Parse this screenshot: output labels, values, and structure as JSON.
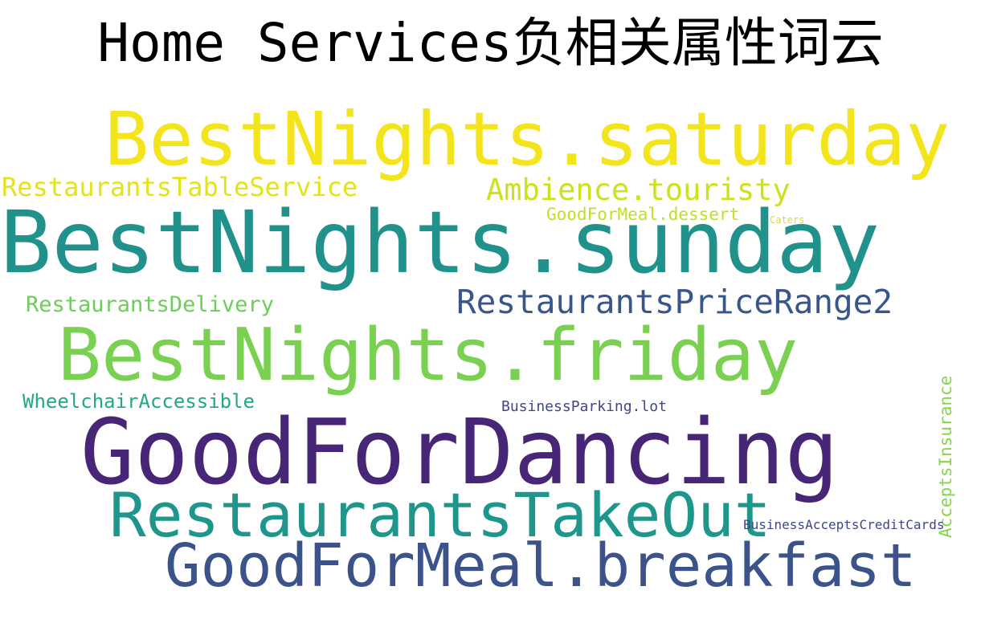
{
  "title": "Home Services负相关属性词云",
  "words": [
    {
      "text": "BestNights.saturday",
      "color": "#f3e41c",
      "weight": 1.0
    },
    {
      "text": "RestaurantsTableService",
      "color": "#e3e418",
      "weight": 0.2
    },
    {
      "text": "Ambience.touristy",
      "color": "#cde11d",
      "weight": 0.3
    },
    {
      "text": "GoodForMeal.dessert",
      "color": "#c2df23",
      "weight": 0.15
    },
    {
      "text": "Caters",
      "color": "#d8e219",
      "weight": 0.05
    },
    {
      "text": "BestNights.sunday",
      "color": "#21918c",
      "weight": 1.0
    },
    {
      "text": "RestaurantsDelivery",
      "color": "#6ccd5a",
      "weight": 0.2
    },
    {
      "text": "RestaurantsPriceRange2",
      "color": "#39568c",
      "weight": 0.35
    },
    {
      "text": "BestNights.friday",
      "color": "#7ad151",
      "weight": 1.0
    },
    {
      "text": "AcceptsInsurance",
      "color": "#86d549",
      "weight": 0.15
    },
    {
      "text": "WheelchairAccessible",
      "color": "#22a884",
      "weight": 0.15
    },
    {
      "text": "BusinessParking.lot",
      "color": "#404688",
      "weight": 0.1
    },
    {
      "text": "GoodForDancing",
      "color": "#482677",
      "weight": 1.0
    },
    {
      "text": "RestaurantsTakeOut",
      "color": "#1f968b",
      "weight": 0.75
    },
    {
      "text": "BusinessAcceptsCreditCards",
      "color": "#3f4788",
      "weight": 0.1
    },
    {
      "text": "GoodForMeal.breakfast",
      "color": "#3b528b",
      "weight": 0.7
    }
  ]
}
